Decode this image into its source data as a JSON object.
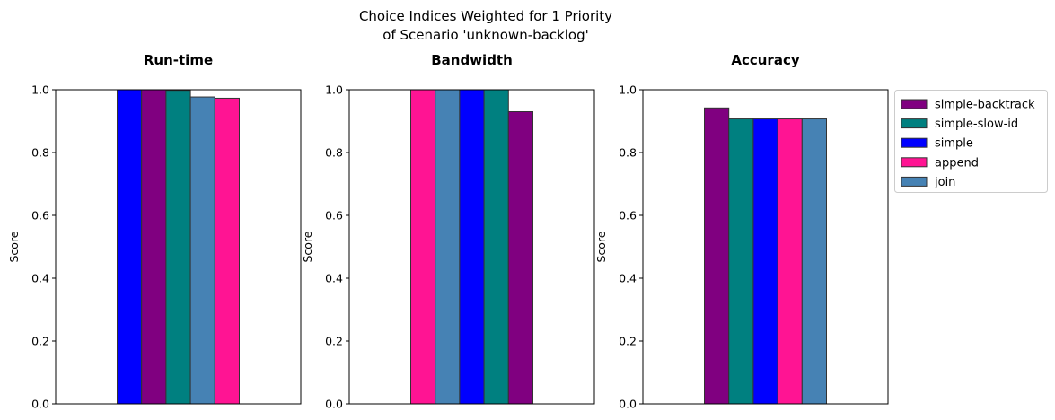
{
  "figure": {
    "title_line1": "Choice Indices Weighted for 1 Priority",
    "title_line2": "of Scenario 'unknown-backlog'"
  },
  "legend": {
    "placement": "right, outside axes",
    "entries": [
      {
        "name": "simple-backtrack",
        "color": "#800080"
      },
      {
        "name": "simple-slow-id",
        "color": "#008080"
      },
      {
        "name": "simple",
        "color": "#0000ff"
      },
      {
        "name": "append",
        "color": "#ff1493"
      },
      {
        "name": "join",
        "color": "#4682b4"
      }
    ]
  },
  "chart_data": [
    {
      "type": "bar",
      "title": "Run-time",
      "xlabel": "",
      "ylabel": "Score",
      "ylim": [
        0,
        1.0
      ],
      "yticks": [
        "0.0",
        "0.2",
        "0.4",
        "0.6",
        "0.8",
        "1.0"
      ],
      "grid": false,
      "bars": [
        {
          "series": "simple",
          "value": 1.0,
          "color": "#0000ff"
        },
        {
          "series": "simple-backtrack",
          "value": 1.0,
          "color": "#800080"
        },
        {
          "series": "simple-slow-id",
          "value": 0.998,
          "color": "#008080"
        },
        {
          "series": "join",
          "value": 0.977,
          "color": "#4682b4"
        },
        {
          "series": "append",
          "value": 0.973,
          "color": "#ff1493"
        }
      ]
    },
    {
      "type": "bar",
      "title": "Bandwidth",
      "xlabel": "",
      "ylabel": "Score",
      "ylim": [
        0,
        1.0
      ],
      "yticks": [
        "0.0",
        "0.2",
        "0.4",
        "0.6",
        "0.8",
        "1.0"
      ],
      "grid": false,
      "bars": [
        {
          "series": "append",
          "value": 1.0,
          "color": "#ff1493"
        },
        {
          "series": "join",
          "value": 1.0,
          "color": "#4682b4"
        },
        {
          "series": "simple",
          "value": 1.0,
          "color": "#0000ff"
        },
        {
          "series": "simple-slow-id",
          "value": 1.0,
          "color": "#008080"
        },
        {
          "series": "simple-backtrack",
          "value": 0.93,
          "color": "#800080"
        }
      ]
    },
    {
      "type": "bar",
      "title": "Accuracy",
      "xlabel": "",
      "ylabel": "Score",
      "ylim": [
        0,
        1.0
      ],
      "yticks": [
        "0.0",
        "0.2",
        "0.4",
        "0.6",
        "0.8",
        "1.0"
      ],
      "grid": false,
      "bars": [
        {
          "series": "simple-backtrack",
          "value": 0.942,
          "color": "#800080"
        },
        {
          "series": "simple-slow-id",
          "value": 0.907,
          "color": "#008080"
        },
        {
          "series": "simple",
          "value": 0.907,
          "color": "#0000ff"
        },
        {
          "series": "append",
          "value": 0.907,
          "color": "#ff1493"
        },
        {
          "series": "join",
          "value": 0.907,
          "color": "#4682b4"
        }
      ]
    }
  ]
}
